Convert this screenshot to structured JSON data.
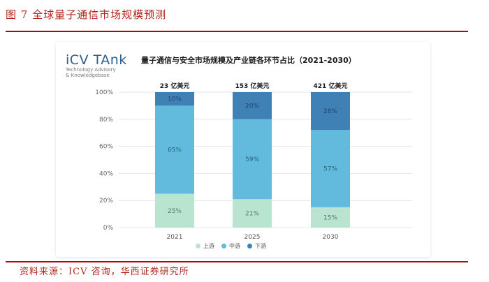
{
  "figure_title": "图 7   全球量子通信市场规模预测",
  "source": "资料来源：ICV 咨询，华西证券研究所",
  "logo": {
    "main": "iCV TAnk",
    "sub1": "Technology Advisory",
    "sub2": "& Knowledgebase"
  },
  "colors": {
    "upstream": "#b9e4cf",
    "midstream": "#62bbdc",
    "downstream": "#3f80b5",
    "rule": "#c00000"
  },
  "chart_data": {
    "type": "bar",
    "stacked": true,
    "title": "量子通信与安全市场规模及产业链各环节占比（2021-2030）",
    "categories": [
      "2021",
      "2025",
      "2030"
    ],
    "totals": [
      "23 亿美元",
      "153 亿美元",
      "421 亿美元"
    ],
    "series": [
      {
        "name": "上游",
        "values": [
          25,
          21,
          15
        ],
        "labels": [
          "25%",
          "21%",
          "15%"
        ]
      },
      {
        "name": "中游",
        "values": [
          65,
          59,
          57
        ],
        "labels": [
          "65%",
          "59%",
          "57%"
        ]
      },
      {
        "name": "下游",
        "values": [
          10,
          20,
          28
        ],
        "labels": [
          "10%",
          "20%",
          "28%"
        ]
      }
    ],
    "yticks": [
      "0%",
      "20%",
      "40%",
      "60%",
      "80%",
      "100%"
    ],
    "ylim": [
      0,
      100
    ],
    "legend_position": "bottom"
  }
}
